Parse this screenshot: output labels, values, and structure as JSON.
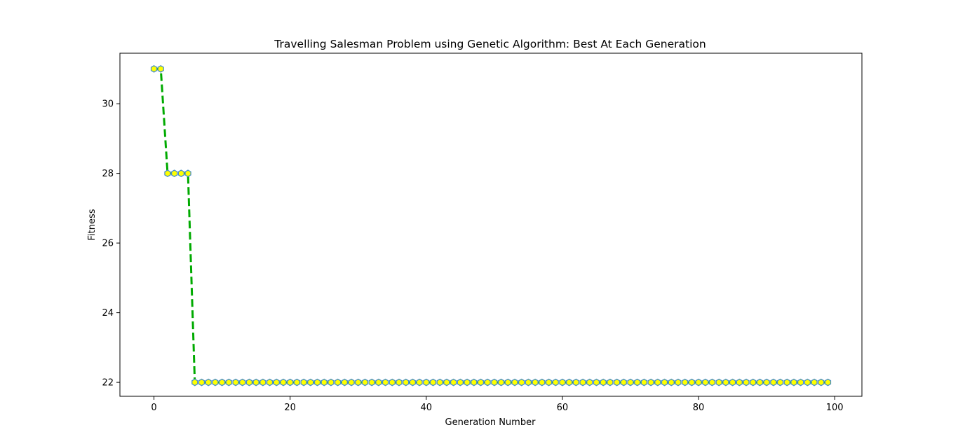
{
  "chart_data": {
    "type": "line",
    "title": "Travelling Salesman Problem using Genetic Algorithm: Best At Each Generation",
    "xlabel": "Generation Number",
    "ylabel": "Fitness",
    "xlim": [
      -5,
      104
    ],
    "ylim": [
      21.6,
      31.45
    ],
    "xticks": [
      0,
      20,
      40,
      60,
      80,
      100
    ],
    "yticks": [
      22,
      24,
      26,
      28,
      30
    ],
    "grid": false,
    "legend": "none",
    "x": [
      0,
      1,
      2,
      3,
      4,
      5,
      6,
      7,
      8,
      9,
      10,
      11,
      12,
      13,
      14,
      15,
      16,
      17,
      18,
      19,
      20,
      21,
      22,
      23,
      24,
      25,
      26,
      27,
      28,
      29,
      30,
      31,
      32,
      33,
      34,
      35,
      36,
      37,
      38,
      39,
      40,
      41,
      42,
      43,
      44,
      45,
      46,
      47,
      48,
      49,
      50,
      51,
      52,
      53,
      54,
      55,
      56,
      57,
      58,
      59,
      60,
      61,
      62,
      63,
      64,
      65,
      66,
      67,
      68,
      69,
      70,
      71,
      72,
      73,
      74,
      75,
      76,
      77,
      78,
      79,
      80,
      81,
      82,
      83,
      84,
      85,
      86,
      87,
      88,
      89,
      90,
      91,
      92,
      93,
      94,
      95,
      96,
      97,
      98,
      99
    ],
    "series": [
      {
        "values": [
          31,
          31,
          28,
          28,
          28,
          28,
          22,
          22,
          22,
          22,
          22,
          22,
          22,
          22,
          22,
          22,
          22,
          22,
          22,
          22,
          22,
          22,
          22,
          22,
          22,
          22,
          22,
          22,
          22,
          22,
          22,
          22,
          22,
          22,
          22,
          22,
          22,
          22,
          22,
          22,
          22,
          22,
          22,
          22,
          22,
          22,
          22,
          22,
          22,
          22,
          22,
          22,
          22,
          22,
          22,
          22,
          22,
          22,
          22,
          22,
          22,
          22,
          22,
          22,
          22,
          22,
          22,
          22,
          22,
          22,
          22,
          22,
          22,
          22,
          22,
          22,
          22,
          22,
          22,
          22,
          22,
          22,
          22,
          22,
          22,
          22,
          22,
          22,
          22,
          22,
          22,
          22,
          22,
          22,
          22,
          22,
          22,
          22,
          22,
          22
        ],
        "line_color": "#00aa00",
        "line_style": "dashed",
        "marker": "hexagon",
        "marker_face_color": "#ffff00",
        "marker_edge_color": "#4a90c8"
      }
    ]
  }
}
